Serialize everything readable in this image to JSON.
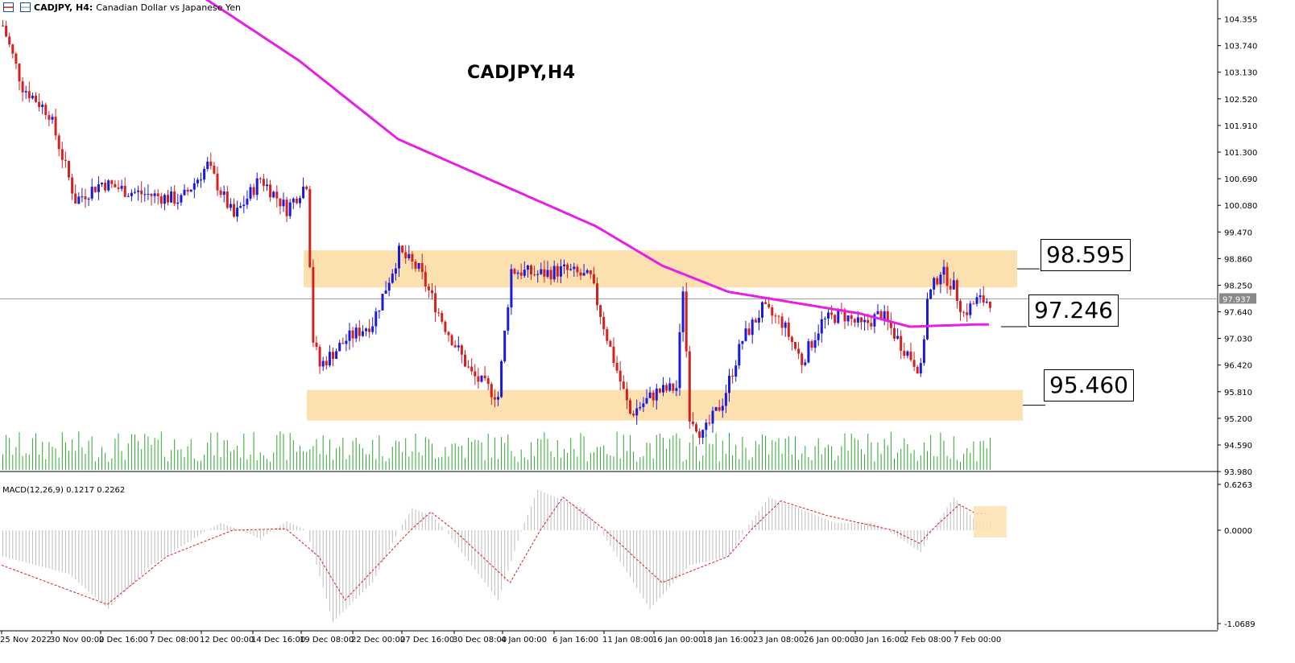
{
  "header": {
    "symbol": "CADJPY, H4:",
    "description": "Canadian Dollar vs Japanese Yen",
    "icon": "chart-icon"
  },
  "title": "CADJPY,H4",
  "price_boxes": [
    {
      "label": "98.595"
    },
    {
      "label": "97.246"
    },
    {
      "label": "95.460"
    }
  ],
  "macd": {
    "label": "MACD(12,26,9) 0.1217 0.2262"
  },
  "colors": {
    "bull": "#1a1adc",
    "bear": "#d62020",
    "ma": "#e61ee6",
    "volume": "#2fa62f",
    "zone": "#fde0b0",
    "macd_hist": "#bdbdbd",
    "signal": "#d62020"
  },
  "chart_data": {
    "type": "candlestick",
    "symbol": "CADJPY",
    "timeframe": "H4",
    "price_axis": {
      "range": [
        94.0,
        104.6
      ],
      "ticks": [
        "104.355",
        "103.740",
        "103.130",
        "102.520",
        "101.910",
        "101.300",
        "100.690",
        "100.080",
        "99.470",
        "98.860",
        "98.250",
        "97.640",
        "97.030",
        "96.420",
        "95.810",
        "95.200",
        "94.590",
        "93.980"
      ],
      "current_price": "97.937"
    },
    "time_axis": {
      "ticks": [
        "25 Nov 2022",
        "30 Nov 00:00",
        "2 Dec 16:00",
        "7 Dec 08:00",
        "12 Dec 00:00",
        "14 Dec 16:00",
        "19 Dec 08:00",
        "22 Dec 00:00",
        "27 Dec 16:00",
        "30 Dec 08:00",
        "4 Jan 00:00",
        "6 Jan 16:00",
        "11 Jan 08:00",
        "16 Jan 00:00",
        "18 Jan 16:00",
        "23 Jan 08:00",
        "26 Jan 00:00",
        "30 Jan 16:00",
        "2 Feb 08:00",
        "7 Feb 00:00"
      ]
    },
    "zones": [
      {
        "low": 98.2,
        "high": 99.05,
        "label": "98.595"
      },
      {
        "low": 95.15,
        "high": 95.85,
        "label": "95.460"
      }
    ],
    "ma_label": "97.246",
    "close_path": [
      {
        "bar": 0,
        "price": 104.2
      },
      {
        "bar": 6,
        "price": 102.8
      },
      {
        "bar": 14,
        "price": 102.2
      },
      {
        "bar": 22,
        "price": 100.2
      },
      {
        "bar": 30,
        "price": 100.6
      },
      {
        "bar": 38,
        "price": 100.4
      },
      {
        "bar": 46,
        "price": 100.3
      },
      {
        "bar": 54,
        "price": 100.2
      },
      {
        "bar": 62,
        "price": 101.0
      },
      {
        "bar": 70,
        "price": 99.8
      },
      {
        "bar": 78,
        "price": 100.7
      },
      {
        "bar": 86,
        "price": 100.0
      },
      {
        "bar": 92,
        "price": 100.6
      },
      {
        "bar": 94,
        "price": 97.0
      },
      {
        "bar": 96,
        "price": 96.4
      },
      {
        "bar": 104,
        "price": 97.0
      },
      {
        "bar": 112,
        "price": 97.4
      },
      {
        "bar": 120,
        "price": 99.0
      },
      {
        "bar": 126,
        "price": 98.6
      },
      {
        "bar": 134,
        "price": 97.3
      },
      {
        "bar": 142,
        "price": 96.2
      },
      {
        "bar": 150,
        "price": 95.7
      },
      {
        "bar": 154,
        "price": 98.6
      },
      {
        "bar": 162,
        "price": 98.5
      },
      {
        "bar": 170,
        "price": 98.6
      },
      {
        "bar": 178,
        "price": 98.4
      },
      {
        "bar": 184,
        "price": 96.8
      },
      {
        "bar": 190,
        "price": 95.3
      },
      {
        "bar": 198,
        "price": 95.8
      },
      {
        "bar": 204,
        "price": 95.9
      },
      {
        "bar": 206,
        "price": 98.2
      },
      {
        "bar": 208,
        "price": 95.3
      },
      {
        "bar": 212,
        "price": 94.8
      },
      {
        "bar": 218,
        "price": 95.6
      },
      {
        "bar": 224,
        "price": 97.0
      },
      {
        "bar": 230,
        "price": 97.7
      },
      {
        "bar": 236,
        "price": 97.4
      },
      {
        "bar": 242,
        "price": 96.5
      },
      {
        "bar": 248,
        "price": 97.4
      },
      {
        "bar": 254,
        "price": 97.6
      },
      {
        "bar": 260,
        "price": 97.3
      },
      {
        "bar": 266,
        "price": 97.6
      },
      {
        "bar": 272,
        "price": 96.9
      },
      {
        "bar": 278,
        "price": 96.3
      },
      {
        "bar": 280,
        "price": 97.9
      },
      {
        "bar": 284,
        "price": 98.6
      },
      {
        "bar": 288,
        "price": 98.2
      },
      {
        "bar": 291,
        "price": 97.6
      },
      {
        "bar": 295,
        "price": 97.9
      }
    ],
    "ma_path": [
      {
        "bar": 60,
        "price": 104.9
      },
      {
        "bar": 90,
        "price": 103.4
      },
      {
        "bar": 120,
        "price": 101.6
      },
      {
        "bar": 150,
        "price": 100.6
      },
      {
        "bar": 180,
        "price": 99.6
      },
      {
        "bar": 200,
        "price": 98.7
      },
      {
        "bar": 220,
        "price": 98.1
      },
      {
        "bar": 240,
        "price": 97.85
      },
      {
        "bar": 260,
        "price": 97.6
      },
      {
        "bar": 275,
        "price": 97.3
      },
      {
        "bar": 295,
        "price": 97.35
      }
    ],
    "macd_axis": {
      "range": [
        -1.0689,
        0.6263
      ],
      "ticks": [
        "0.6263",
        "0.0000",
        "-1.0689"
      ]
    },
    "macd_path": [
      {
        "bar": 0,
        "value": -0.3
      },
      {
        "bar": 20,
        "value": -0.5
      },
      {
        "bar": 32,
        "value": -0.9
      },
      {
        "bar": 45,
        "value": -0.4
      },
      {
        "bar": 66,
        "value": 0.1
      },
      {
        "bar": 78,
        "value": -0.1
      },
      {
        "bar": 86,
        "value": 0.12
      },
      {
        "bar": 92,
        "value": 0.0
      },
      {
        "bar": 100,
        "value": -1.05
      },
      {
        "bar": 112,
        "value": -0.6
      },
      {
        "bar": 124,
        "value": 0.3
      },
      {
        "bar": 130,
        "value": 0.2
      },
      {
        "bar": 150,
        "value": -0.8
      },
      {
        "bar": 162,
        "value": 0.55
      },
      {
        "bar": 176,
        "value": 0.3
      },
      {
        "bar": 196,
        "value": -0.9
      },
      {
        "bar": 208,
        "value": -0.4
      },
      {
        "bar": 220,
        "value": -0.3
      },
      {
        "bar": 232,
        "value": 0.45
      },
      {
        "bar": 244,
        "value": 0.25
      },
      {
        "bar": 252,
        "value": 0.1
      },
      {
        "bar": 264,
        "value": 0.1
      },
      {
        "bar": 278,
        "value": -0.25
      },
      {
        "bar": 288,
        "value": 0.45
      },
      {
        "bar": 295,
        "value": 0.12
      }
    ],
    "signal_path": [
      {
        "bar": 0,
        "value": -0.4
      },
      {
        "bar": 32,
        "value": -0.85
      },
      {
        "bar": 50,
        "value": -0.3
      },
      {
        "bar": 70,
        "value": 0.0
      },
      {
        "bar": 86,
        "value": 0.02
      },
      {
        "bar": 96,
        "value": -0.3
      },
      {
        "bar": 104,
        "value": -0.8
      },
      {
        "bar": 130,
        "value": 0.25
      },
      {
        "bar": 154,
        "value": -0.6
      },
      {
        "bar": 170,
        "value": 0.45
      },
      {
        "bar": 200,
        "value": -0.6
      },
      {
        "bar": 220,
        "value": -0.3
      },
      {
        "bar": 236,
        "value": 0.4
      },
      {
        "bar": 250,
        "value": 0.2
      },
      {
        "bar": 270,
        "value": 0.0
      },
      {
        "bar": 278,
        "value": -0.15
      },
      {
        "bar": 290,
        "value": 0.35
      },
      {
        "bar": 295,
        "value": 0.23
      }
    ]
  }
}
